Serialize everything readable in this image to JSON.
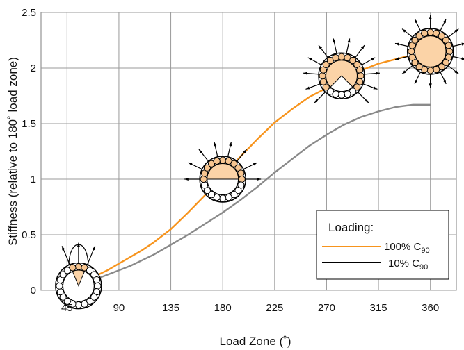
{
  "chart_data": {
    "type": "line",
    "xlabel": "Load Zone (˚)",
    "ylabel": "Stiffness (relative to 180˚ load zone)",
    "xlim": [
      22.5,
      382.5
    ],
    "ylim": [
      0,
      2.5
    ],
    "x_ticks": [
      45,
      90,
      135,
      180,
      225,
      270,
      315,
      360
    ],
    "y_ticks": [
      "0",
      "0.5",
      "1",
      "1.5",
      "2",
      "2.5"
    ],
    "y_tick_values": [
      0,
      0.5,
      1,
      1.5,
      2,
      2.5
    ],
    "grid": true,
    "legend_position": "bottom-right",
    "legend": {
      "title": "Loading:",
      "entries": [
        {
          "prefix": "100% C",
          "subscript": "90",
          "color": "#f7941d"
        },
        {
          "prefix": "10% C",
          "subscript": "90",
          "color": "#000000"
        }
      ]
    },
    "series": [
      {
        "color": "#f7941d",
        "x": [
          50,
          60,
          70,
          80,
          90,
          100,
          110,
          120,
          135,
          150,
          165,
          180,
          195,
          210,
          225,
          240,
          255,
          270,
          285,
          300,
          315,
          330,
          345,
          360
        ],
        "y": [
          0.05,
          0.09,
          0.13,
          0.18,
          0.24,
          0.3,
          0.36,
          0.43,
          0.55,
          0.7,
          0.86,
          1.03,
          1.2,
          1.36,
          1.51,
          1.63,
          1.74,
          1.82,
          1.91,
          1.98,
          2.04,
          2.08,
          2.12,
          2.15
        ]
      },
      {
        "color": "#8a8a8a",
        "x": [
          50,
          60,
          70,
          80,
          90,
          100,
          110,
          120,
          135,
          150,
          165,
          180,
          195,
          210,
          225,
          240,
          255,
          270,
          285,
          300,
          315,
          330,
          345,
          360
        ],
        "y": [
          0.03,
          0.06,
          0.1,
          0.14,
          0.18,
          0.22,
          0.27,
          0.32,
          0.41,
          0.5,
          0.6,
          0.7,
          0.81,
          0.93,
          1.06,
          1.18,
          1.3,
          1.4,
          1.49,
          1.56,
          1.61,
          1.65,
          1.67,
          1.67
        ]
      }
    ],
    "bearing_icons": [
      {
        "x": 55,
        "y": 0.04,
        "load_zone": 45
      },
      {
        "x": 180,
        "y": 1.0,
        "load_zone": 180
      },
      {
        "x": 283,
        "y": 1.93,
        "load_zone": 270
      },
      {
        "x": 360,
        "y": 2.15,
        "load_zone": 360
      }
    ]
  }
}
